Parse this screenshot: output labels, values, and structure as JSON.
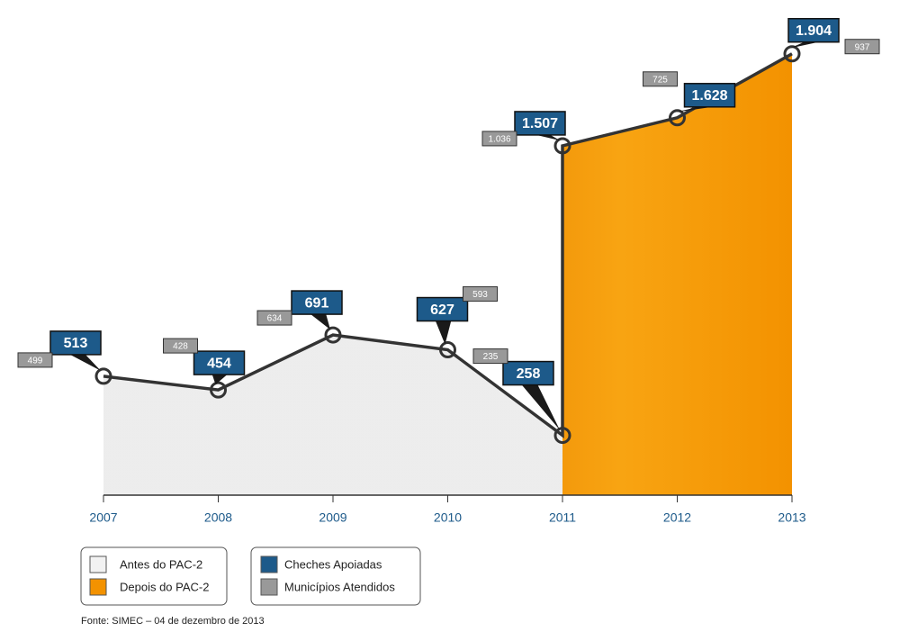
{
  "chart_data": {
    "type": "line",
    "x": [
      2007,
      2008,
      2009,
      2010,
      2011,
      2011,
      2012,
      2013
    ],
    "xlim": [
      2007,
      2013
    ],
    "xticks": [
      2007,
      2008,
      2009,
      2010,
      2011,
      2012,
      2013
    ],
    "ylim": [
      0,
      2000
    ],
    "series": [
      {
        "name": "Cheches Apoiadas",
        "color": "#1d5a8a",
        "values": [
          513,
          454,
          691,
          627,
          258,
          1507,
          1628,
          1904
        ],
        "value_labels": [
          "513",
          "454",
          "691",
          "627",
          "258",
          "1.507",
          "1.628",
          "1.904"
        ]
      },
      {
        "name": "Municípios Atendidos",
        "color": "#999999",
        "values": [
          499,
          428,
          634,
          593,
          235,
          1036,
          725,
          937
        ],
        "value_labels": [
          "499",
          "428",
          "634",
          "593",
          "235",
          "1.036",
          "725",
          "937"
        ]
      }
    ],
    "periods": [
      {
        "name": "Antes do PAC-2",
        "color": "#e6e6e6",
        "range": [
          2007,
          2011
        ]
      },
      {
        "name": "Depois do PAC-2",
        "color": "#f39200",
        "range": [
          2011,
          2013
        ]
      }
    ],
    "source": "Fonte: SIMEC – 04 de dezembro de 2013"
  }
}
